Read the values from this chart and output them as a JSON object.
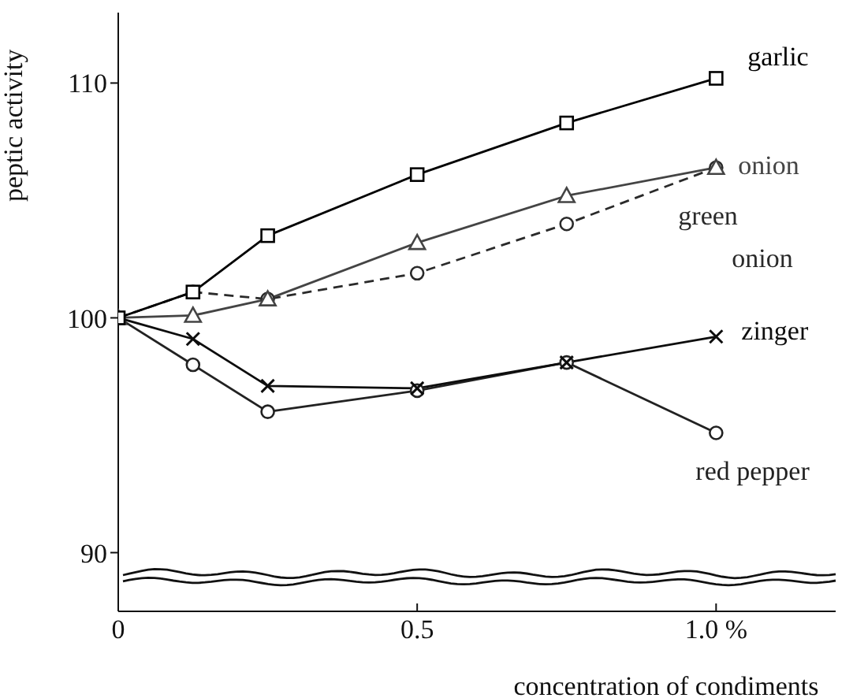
{
  "chart_data": {
    "type": "line",
    "xlabel": "concentration of condiments",
    "ylabel": "peptic activity",
    "x": [
      0,
      0.125,
      0.25,
      0.5,
      0.75,
      1.0
    ],
    "xlim": [
      0,
      1.2
    ],
    "xticks": [
      0,
      0.5,
      {
        "value": 1.0,
        "label": "1.0 %"
      }
    ],
    "ylim": [
      87.5,
      113
    ],
    "yticks": [
      90,
      100,
      110
    ],
    "series": [
      {
        "name": "garlic",
        "color": "#000000",
        "marker": "square",
        "line_style": "solid",
        "values": [
          100,
          101.1,
          103.5,
          106.1,
          108.3,
          110.2
        ]
      },
      {
        "name": "onion",
        "color": "#444444",
        "marker": "triangle",
        "line_style": "solid",
        "values": [
          100,
          100.1,
          100.8,
          103.2,
          105.2,
          106.4
        ]
      },
      {
        "name": "green onion",
        "color": "#2a2a2a",
        "marker": "circle",
        "line_style": "dashed",
        "values": [
          100,
          101.1,
          100.8,
          101.9,
          104,
          106.4
        ]
      },
      {
        "name": "zinger",
        "color": "#0d0d0d",
        "marker": "cross",
        "line_style": "solid",
        "values": [
          100,
          99.1,
          97.1,
          97,
          98.1,
          99.2
        ]
      },
      {
        "name": "red pepper",
        "color": "#222222",
        "marker": "circle",
        "line_style": "solid",
        "values": [
          100,
          98,
          96,
          96.9,
          98.1,
          95.1
        ]
      }
    ]
  }
}
